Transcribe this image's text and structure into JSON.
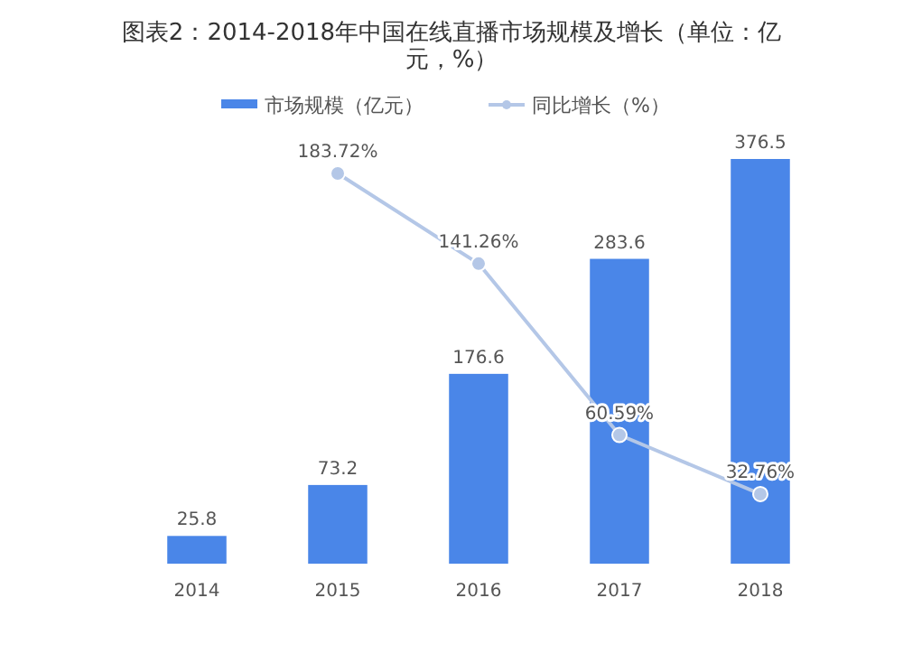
{
  "chart_data": {
    "type": "bar",
    "title": "图表2：2014-2018年中国在线直播市场规模及增长（单位：亿元，%）",
    "categories": [
      "2014",
      "2015",
      "2016",
      "2017",
      "2018"
    ],
    "series": [
      {
        "name": "市场规模（亿元）",
        "color": "#4a86e8",
        "values": [
          25.8,
          73.2,
          176.6,
          283.6,
          376.5
        ],
        "value_labels": [
          "25.8",
          "73.2",
          "176.6",
          "283.6",
          "376.5"
        ]
      },
      {
        "name": "同比增长（%）",
        "type": "line",
        "axis": "y2",
        "color": "#b4c7e7",
        "marker": "circle",
        "values": [
          null,
          183.72,
          141.26,
          60.59,
          32.76
        ],
        "value_labels": [
          null,
          "183.72%",
          "141.26%",
          "60.59%",
          "32.76%"
        ]
      }
    ],
    "legend": "top",
    "grid": false
  }
}
